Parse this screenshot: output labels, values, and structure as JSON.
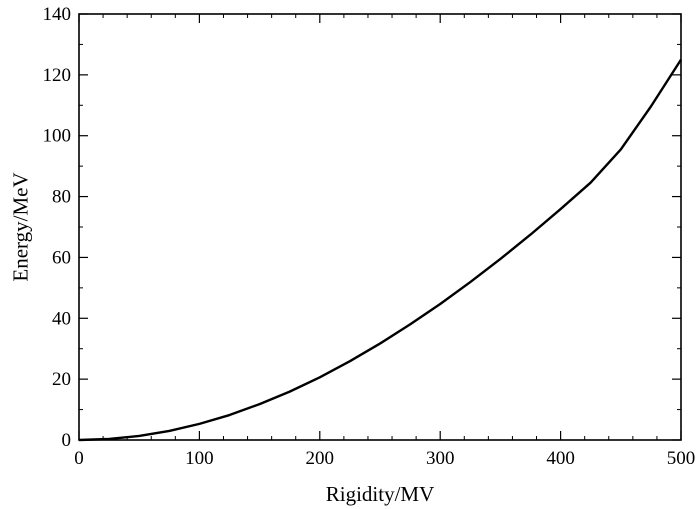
{
  "chart_data": {
    "type": "line",
    "title": "",
    "xlabel": "Rigidity/MV",
    "ylabel": "Energy/MeV",
    "xlim": [
      0,
      500
    ],
    "ylim": [
      0,
      140
    ],
    "x_ticks": [
      0,
      100,
      200,
      300,
      400,
      500
    ],
    "y_ticks": [
      0,
      20,
      40,
      60,
      80,
      100,
      120,
      140
    ],
    "x_tick_labels": [
      "0",
      "100",
      "200",
      "300",
      "400",
      "500"
    ],
    "y_tick_labels": [
      "0",
      "20",
      "40",
      "60",
      "80",
      "100",
      "120",
      "140"
    ],
    "grid": false,
    "legend": "none",
    "series": [
      {
        "color": "#000000",
        "x": [
          0,
          25,
          50,
          75,
          100,
          125,
          150,
          175,
          200,
          225,
          250,
          275,
          300,
          325,
          350,
          375,
          400,
          425,
          450,
          475,
          500
        ],
        "y": [
          0,
          0.33,
          1.33,
          2.98,
          5.3,
          8.2,
          11.8,
          15.9,
          20.6,
          25.9,
          31.7,
          38.0,
          44.7,
          51.9,
          59.5,
          67.5,
          75.9,
          84.6,
          95.5,
          109.6,
          125
        ]
      }
    ]
  }
}
